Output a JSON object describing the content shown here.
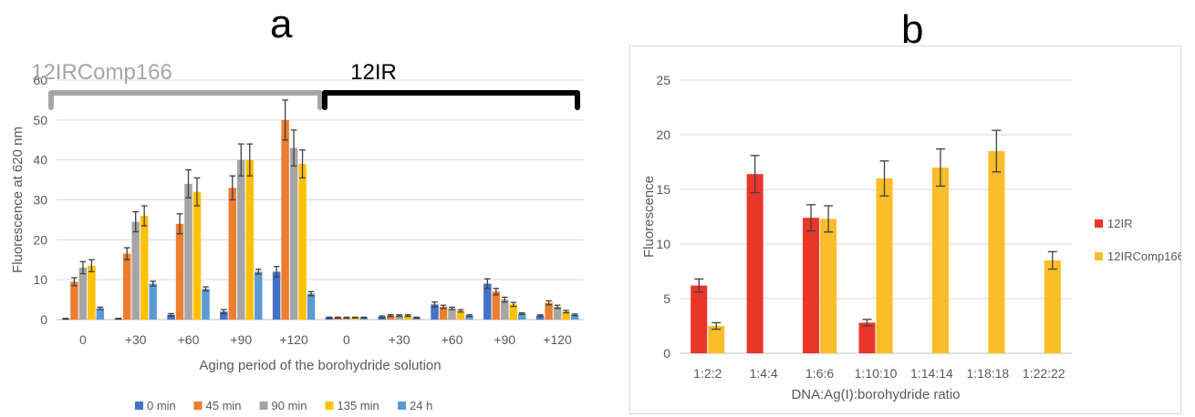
{
  "figure": {
    "panel_a_letter": "a",
    "panel_b_letter": "b"
  },
  "chart_data": [
    {
      "panel": "a",
      "type": "bar",
      "title": "",
      "xlabel": "Aging period of the borohydride solution",
      "ylabel": "Fluorescence at 620 nm",
      "ylim": [
        0,
        60
      ],
      "yticks": [
        0,
        10,
        20,
        30,
        40,
        50,
        60
      ],
      "grid": true,
      "legend_position": "bottom",
      "categories": [
        "0",
        "+30",
        "+60",
        "+90",
        "+120",
        "0",
        "+30",
        "+60",
        "+90",
        "+120"
      ],
      "groups": [
        {
          "label": "12IRComp166",
          "color": "#a6a6a6",
          "from_category": 0,
          "to_category": 4
        },
        {
          "label": "12IR",
          "color": "#000000",
          "from_category": 5,
          "to_category": 9
        }
      ],
      "series": [
        {
          "name": "0 min",
          "color": "#4472c4",
          "values": [
            0.2,
            0.2,
            1.2,
            2.0,
            12.0,
            0.5,
            0.7,
            3.8,
            9.0,
            1.0
          ],
          "errors": [
            0.1,
            0.1,
            0.3,
            0.5,
            1.3,
            0.1,
            0.2,
            0.6,
            1.2,
            0.2
          ]
        },
        {
          "name": "45 min",
          "color": "#ed7d31",
          "values": [
            9.5,
            16.5,
            24.0,
            33.0,
            50.0,
            0.5,
            1.0,
            3.2,
            7.0,
            4.2
          ],
          "errors": [
            1.0,
            1.5,
            2.5,
            3.0,
            5.0,
            0.1,
            0.2,
            0.4,
            0.8,
            0.5
          ]
        },
        {
          "name": "90 min",
          "color": "#a5a5a5",
          "values": [
            13.0,
            24.5,
            34.0,
            40.0,
            43.0,
            0.5,
            1.0,
            2.8,
            5.0,
            3.2
          ],
          "errors": [
            1.5,
            2.5,
            3.5,
            4.0,
            4.5,
            0.1,
            0.2,
            0.3,
            0.6,
            0.4
          ]
        },
        {
          "name": "135 min",
          "color": "#ffc000",
          "values": [
            13.5,
            26.0,
            32.0,
            40.0,
            39.0,
            0.5,
            1.0,
            2.2,
            3.8,
            2.0
          ],
          "errors": [
            1.5,
            2.5,
            3.5,
            4.0,
            3.5,
            0.1,
            0.2,
            0.3,
            0.5,
            0.3
          ]
        },
        {
          "name": "24 h",
          "color": "#5b9bd5",
          "values": [
            2.8,
            9.0,
            7.7,
            12.0,
            6.5,
            0.5,
            0.5,
            1.0,
            1.5,
            1.2
          ],
          "errors": [
            0.3,
            0.6,
            0.5,
            0.6,
            0.5,
            0.1,
            0.1,
            0.2,
            0.2,
            0.2
          ]
        }
      ]
    },
    {
      "panel": "b",
      "type": "bar",
      "title": "",
      "xlabel": "DNA:Ag(I):borohydride ratio",
      "ylabel": "Fluorescence",
      "ylim": [
        0,
        25
      ],
      "yticks": [
        0,
        5,
        10,
        15,
        20,
        25
      ],
      "grid": true,
      "legend_position": "right",
      "categories": [
        "1:2:2",
        "1:4:4",
        "1:6:6",
        "1:10:10",
        "1:14:14",
        "1:18:18",
        "1:22:22"
      ],
      "series": [
        {
          "name": "12IR",
          "color": "#e8362b",
          "values": [
            6.2,
            16.4,
            12.4,
            2.8,
            null,
            null,
            null
          ],
          "errors": [
            0.6,
            1.7,
            1.2,
            0.3,
            null,
            null,
            null
          ]
        },
        {
          "name": "12IRComp166",
          "color": "#fbbd2a",
          "values": [
            2.5,
            null,
            12.3,
            16.0,
            17.0,
            18.5,
            8.5
          ],
          "errors": [
            0.3,
            null,
            1.2,
            1.6,
            1.7,
            1.9,
            0.8
          ]
        }
      ]
    }
  ]
}
